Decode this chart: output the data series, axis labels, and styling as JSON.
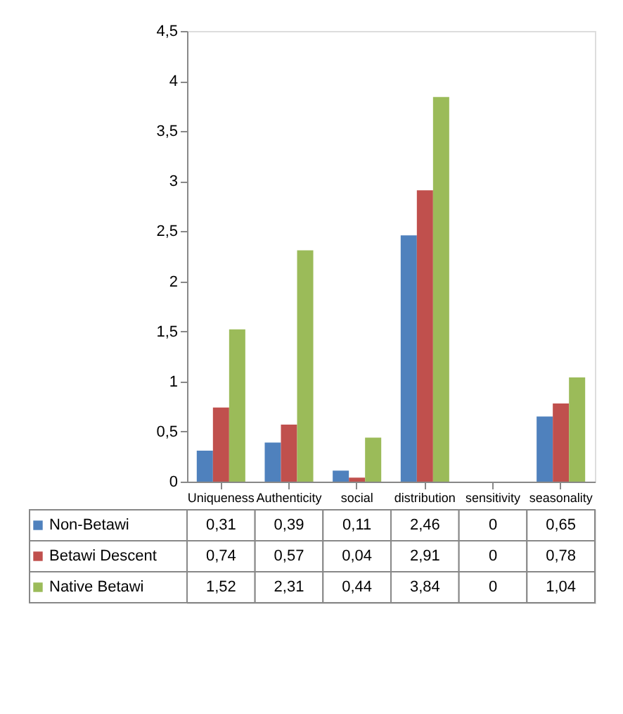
{
  "chart_data": {
    "type": "bar",
    "categories": [
      "Uniqueness",
      "Authenticity",
      "social",
      "distribution",
      "sensitivity",
      "seasonality"
    ],
    "series": [
      {
        "name": "Non-Betawi",
        "color": "#4f81bd",
        "values": [
          0.31,
          0.39,
          0.11,
          2.46,
          0,
          0.65
        ],
        "value_labels": [
          "0,31",
          "0,39",
          "0,11",
          "2,46",
          "0",
          "0,65"
        ]
      },
      {
        "name": "Betawi Descent",
        "color": "#c0504d",
        "values": [
          0.74,
          0.57,
          0.04,
          2.91,
          0,
          0.78
        ],
        "value_labels": [
          "0,74",
          "0,57",
          "0,04",
          "2,91",
          "0",
          "0,78"
        ]
      },
      {
        "name": "Native Betawi",
        "color": "#9bbb59",
        "values": [
          1.52,
          2.31,
          0.44,
          3.84,
          0,
          1.04
        ],
        "value_labels": [
          "1,52",
          "2,31",
          "0,44",
          "3,84",
          "0",
          "1,04"
        ]
      }
    ],
    "ylim": [
      0,
      4.5
    ],
    "yticks": [
      0,
      {
        "value": 0.5,
        "label": "0,5"
      },
      1,
      {
        "value": 1.5,
        "label": "1,5"
      },
      2,
      {
        "value": 2.5,
        "label": "2,5"
      },
      3,
      {
        "value": 3.5,
        "label": "3,5"
      },
      4,
      {
        "value": 4.5,
        "label": "4,5"
      }
    ],
    "grid": false,
    "legend": "bottom"
  }
}
